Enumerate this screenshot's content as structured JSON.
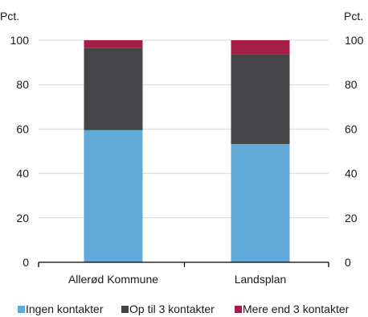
{
  "chart_data": {
    "type": "bar",
    "stacked": true,
    "categories": [
      "Allerød Kommune",
      "Landsplan"
    ],
    "series": [
      {
        "name": "Ingen kontakter",
        "values": [
          59.5,
          53.2
        ],
        "color": "#62aad8"
      },
      {
        "name": "Op til 3 kontakter",
        "values": [
          37.0,
          40.6
        ],
        "color": "#454547"
      },
      {
        "name": "Mere end 3 kontakter",
        "values": [
          3.5,
          6.2
        ],
        "color": "#a41f45"
      }
    ],
    "ylim": [
      0,
      100
    ],
    "yticks": [
      0,
      20,
      40,
      60,
      80,
      100
    ],
    "ylabel_left": "Pct.",
    "ylabel_right": "Pct.",
    "grid": true,
    "legend_position": "bottom"
  }
}
